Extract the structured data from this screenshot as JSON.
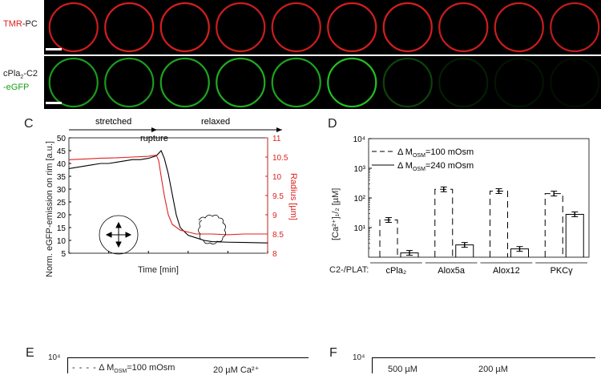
{
  "panels": {
    "top": {
      "label_tmr": "TMR",
      "label_pc": "-PC"
    },
    "bottom": {
      "label_line1": "cPla",
      "label_sub": "2",
      "label_line1_suffix": "-C2",
      "label_line2": "-eGFP"
    },
    "C": {
      "letter": "C"
    },
    "D": {
      "letter": "D"
    },
    "E": {
      "letter": "E"
    },
    "F": {
      "letter": "F"
    }
  },
  "microscopy": {
    "tmr_ring_brightness": [
      0.9,
      0.95,
      0.95,
      0.9,
      0.9,
      0.95,
      0.95,
      0.9,
      0.9,
      0.85
    ],
    "egfp_ring_brightness": [
      0.8,
      0.8,
      0.85,
      0.9,
      0.85,
      1.0,
      0.35,
      0.15,
      0.1,
      0.08
    ],
    "colors": {
      "tmr": "#e02020",
      "egfp": "#22c022"
    }
  },
  "chart_data": [
    {
      "type": "line",
      "panel": "C",
      "xlabel": "Time [min]",
      "ylabel": "Norm. eGFP-emission on rim [a.u.]",
      "ylabel_right": "Radius [µm]",
      "xlim": [
        0,
        25
      ],
      "ylim": [
        5,
        50
      ],
      "ylim_right": [
        8,
        11
      ],
      "x_ticks": [
        "0",
        "5",
        "10",
        "15",
        "20",
        "25"
      ],
      "y_ticks": [
        "5",
        "10",
        "15",
        "20",
        "25",
        "30",
        "35",
        "40",
        "45",
        "50"
      ],
      "y_ticks_right": [
        "8",
        "8.5",
        "9",
        "9.5",
        "10",
        "10.5",
        "11"
      ],
      "phase_labels": [
        "stretched",
        "relaxed"
      ],
      "annotation": "rupture",
      "series": [
        {
          "color": "#000000",
          "x": [
            0,
            1,
            2,
            3,
            4,
            5,
            6,
            7,
            8,
            9,
            10,
            11,
            11.6,
            12,
            12.5,
            13,
            13.5,
            14,
            15,
            16,
            17,
            18,
            20,
            22,
            25
          ],
          "y": [
            38,
            38.5,
            39,
            39.5,
            40,
            40,
            40.5,
            41,
            41.5,
            41.5,
            42,
            43,
            45,
            42,
            36,
            28,
            20,
            15,
            12,
            11,
            10,
            9.5,
            9.3,
            9.2,
            9
          ]
        },
        {
          "color": "#e02020",
          "axis": "right",
          "x": [
            0,
            2,
            4,
            6,
            8,
            10,
            11,
            11.3,
            11.6,
            12,
            12.5,
            13,
            14,
            15,
            16,
            18,
            20,
            22,
            25
          ],
          "y": [
            10.43,
            10.45,
            10.47,
            10.48,
            10.5,
            10.52,
            10.55,
            10.4,
            10.0,
            9.5,
            9.0,
            8.75,
            8.6,
            8.55,
            8.5,
            8.5,
            8.48,
            8.5,
            8.5
          ]
        }
      ]
    },
    {
      "type": "bar",
      "panel": "D",
      "ylabel": "[Ca²⁺]₁/₂ [µM]",
      "yscale": "log",
      "ylim": [
        1,
        10000
      ],
      "y_ticks": [
        "10⁴",
        "10³",
        "10²",
        "10¹"
      ],
      "xlabel": "C2-/PLAT:",
      "categories": [
        "cPla₂",
        "Alox5a",
        "Alox12",
        "PKCγ"
      ],
      "series": [
        {
          "name": "Δ M_OSM=100 mOsm",
          "style": "dashed",
          "values": [
            18,
            195,
            170,
            140
          ]
        },
        {
          "name": "Δ M_OSM=240 mOsm",
          "style": "solid",
          "values": [
            1.4,
            2.6,
            1.9,
            28
          ]
        }
      ],
      "legend": [
        "Δ M",
        "OSM",
        "=100 mOsm",
        "Δ M",
        "OSM",
        "=240 mOsm"
      ]
    }
  ],
  "panelE": {
    "ytick_top": "10⁴",
    "legend": "Δ M",
    "legend_sub": "OSM",
    "legend_rest": "=100 mOsm",
    "note": "20 µM Ca²⁺"
  },
  "panelF": {
    "ytick_top": "10⁴",
    "note1": "500 µM",
    "note2": "200 µM"
  }
}
